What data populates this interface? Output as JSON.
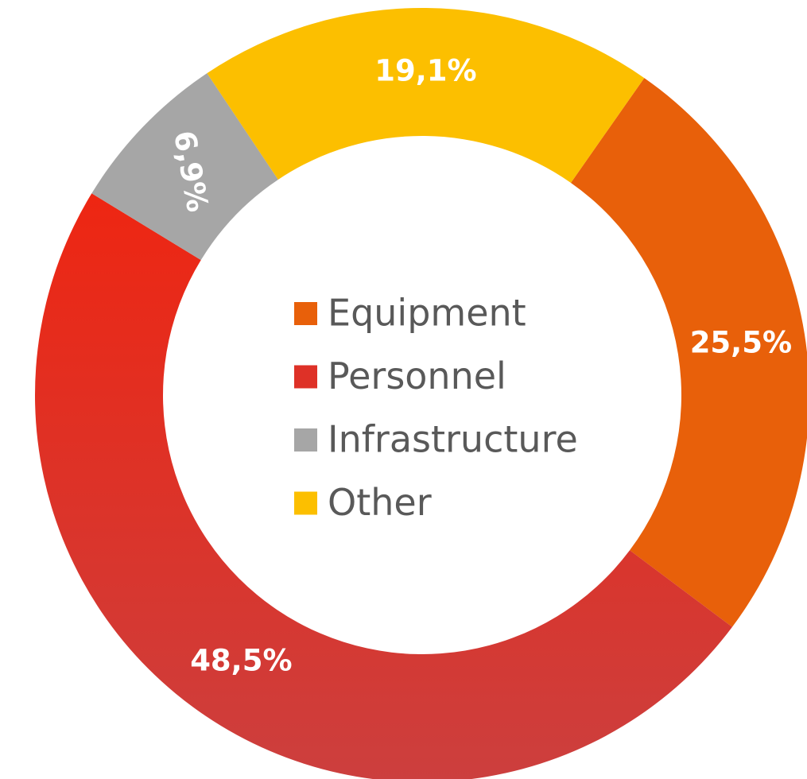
{
  "chart_data": {
    "type": "donut",
    "categories": [
      "Equipment",
      "Personnel",
      "Infrastructure",
      "Other"
    ],
    "values": [
      25.5,
      48.5,
      6.9,
      19.1
    ],
    "value_labels": [
      "25,5%",
      "48,5%",
      "6,9%",
      "19,1%"
    ],
    "colors": [
      "#e8600a",
      "#de3127",
      "#a6a6a6",
      "#fcbf00"
    ],
    "legend": "center"
  }
}
